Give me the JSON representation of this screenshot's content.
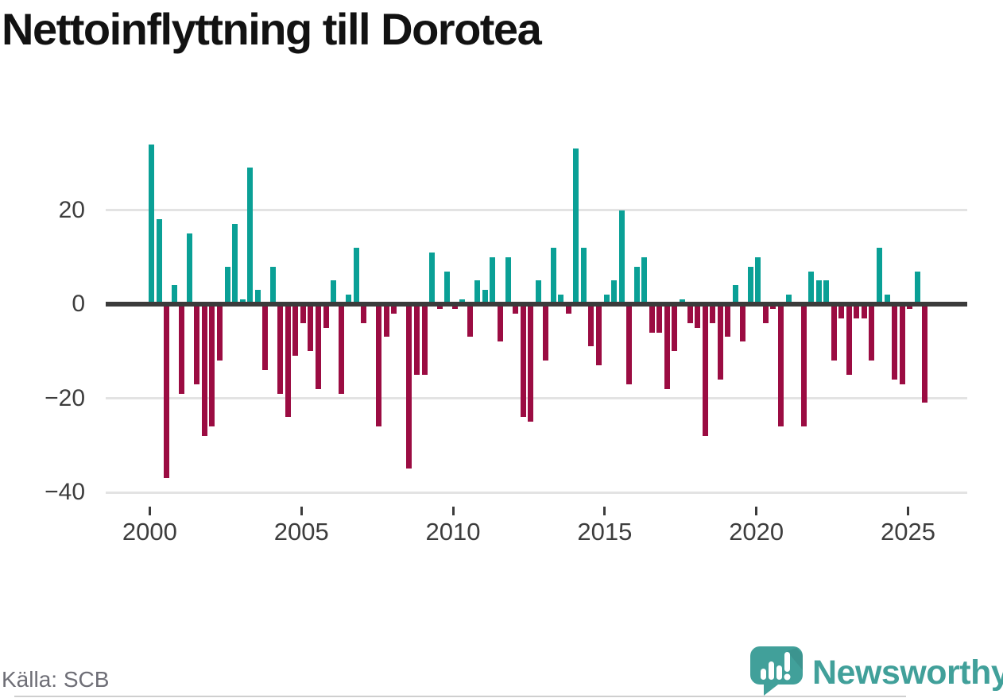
{
  "title": "Nettoinflyttning till Dorotea",
  "source": "Källa: SCB",
  "logo": {
    "brand": "Newsworthy",
    "icon": "speech-bubble-with-bar-chart-and-exclamation"
  },
  "colors": {
    "positive_bar": "#0aa096",
    "negative_bar": "#9b0c42",
    "zero_line": "#3b3b3b",
    "gridline": "#e3e3e3",
    "axis_text": "#3d3d3d",
    "title_text": "#121212",
    "source_text": "#6e6e76",
    "logo_teal": "#41a09a",
    "background": "#ffffff"
  },
  "chart_data": {
    "type": "bar",
    "title": "Nettoinflyttning till Dorotea",
    "frequency": "quarterly",
    "start": "2000Q1",
    "end": "2025Q3",
    "x_tick_labels": [
      "2000",
      "2005",
      "2010",
      "2015",
      "2020",
      "2025"
    ],
    "y_ticks": [
      20,
      0,
      -20,
      -40
    ],
    "y_tick_labels": [
      "20",
      "0",
      "−20",
      "−40"
    ],
    "ylim": [
      -42,
      36
    ],
    "grid": "horizontal",
    "legend": "none",
    "values": [
      34,
      18,
      -37,
      4,
      -19,
      15,
      -17,
      -28,
      -26,
      -12,
      8,
      17,
      1,
      29,
      3,
      -14,
      8,
      -19,
      -24,
      -11,
      -4,
      -10,
      -18,
      -5,
      5,
      -19,
      2,
      12,
      -4,
      0,
      -26,
      -7,
      -2,
      0,
      -35,
      -15,
      -15,
      11,
      -1,
      7,
      -1,
      1,
      -7,
      5,
      3,
      10,
      -8,
      10,
      -2,
      -24,
      -25,
      5,
      -12,
      12,
      2,
      -2,
      33,
      12,
      -9,
      -13,
      2,
      5,
      20,
      -17,
      8,
      10,
      -6,
      -6,
      -18,
      -10,
      1,
      -4,
      -5,
      -28,
      -4,
      -16,
      -7,
      4,
      -8,
      8,
      10,
      -4,
      -1,
      -26,
      2,
      0,
      -26,
      7,
      5,
      5,
      -12,
      -3,
      -15,
      -3,
      -3,
      -12,
      12,
      2,
      -16,
      -17,
      -1,
      7,
      -21
    ]
  }
}
